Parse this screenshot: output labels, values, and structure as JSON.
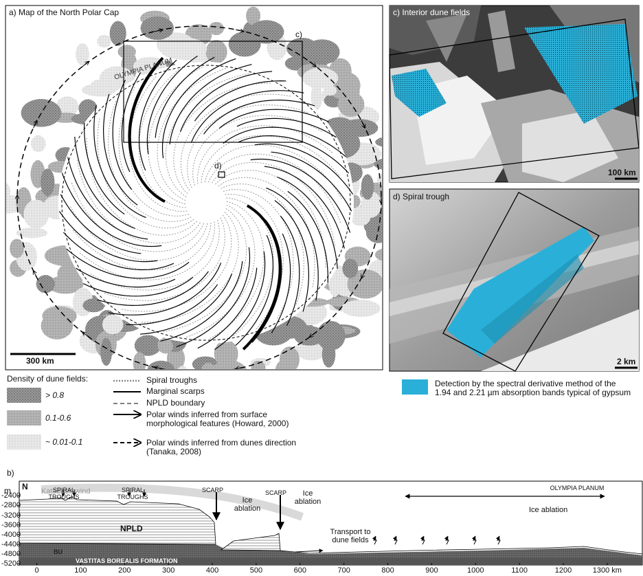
{
  "panel_a": {
    "title": "a) Map of the North Polar Cap",
    "inset_c": "c)",
    "inset_d": "d)",
    "region": "OLYMPIA PLANUM",
    "scale": "300 km"
  },
  "panel_c": {
    "title": "c) Interior dune fields",
    "scale": "100 km"
  },
  "panel_d": {
    "title": "d) Spiral trough",
    "scale": "2 km"
  },
  "legend": {
    "density_title": "Density of dune fields:",
    "density": [
      "> 0.8",
      "0.1-0.6",
      "~ 0.01-0.1"
    ],
    "lines": [
      "Spiral troughs",
      "Marginal scarps",
      "NPLD boundary",
      "Polar winds inferred from surface morphological features (Howard, 2000)",
      "Polar winds inferred from dunes direction (Tanaka, 2008)"
    ],
    "detection": "Detection by the spectral derivative method of the 1.94 and 2.21 µm absorption bands typical of gypsum"
  },
  "chart_data": {
    "type": "profile",
    "title": "b)",
    "y_label": "m",
    "north": "N",
    "xlim": [
      -40,
      1380
    ],
    "ylim": [
      -5250,
      -1800
    ],
    "xticks": [
      0,
      100,
      200,
      300,
      400,
      500,
      600,
      700,
      800,
      900,
      1000,
      1100,
      1200,
      {
        "value": 1300,
        "label": "1300 km"
      }
    ],
    "yticks": [
      -2400,
      -2800,
      -3200,
      -3600,
      -4000,
      -4400,
      -4800,
      -5200
    ],
    "annotations": [
      "Katabatic wind",
      "SPIRAL TROUGHS",
      "SPIRAL TROUGHS",
      "SCARP",
      "SCARP",
      "Ice ablation",
      "Ice ablation",
      "NPLD",
      "BU",
      "VASTITAS BOREALIS FORMATION",
      "Transport to dune fields",
      "OLYMPIA PLANUM",
      "Ice ablation"
    ]
  }
}
